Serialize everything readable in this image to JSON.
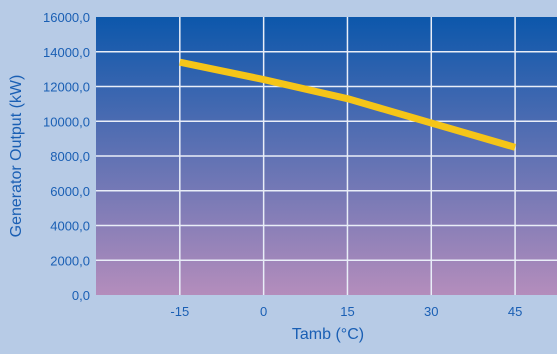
{
  "chart_data": {
    "type": "line",
    "title": "",
    "xlabel": "Tamb (°C)",
    "ylabel": "Generator Output (kW)",
    "xlim": [
      -30,
      52.5
    ],
    "ylim": [
      0,
      16000
    ],
    "x_ticks": [
      -15,
      0,
      15,
      30,
      45
    ],
    "x_tick_labels": [
      "-15",
      "0",
      "15",
      "30",
      "45"
    ],
    "y_ticks": [
      0,
      2000,
      4000,
      6000,
      8000,
      10000,
      12000,
      14000,
      16000
    ],
    "y_tick_labels": [
      "0,0",
      "2000,0",
      "4000,0",
      "6000,0",
      "8000,0",
      "10000,0",
      "12000,0",
      "14000,0",
      "16000,0"
    ],
    "grid": true,
    "legend": "none",
    "series": [
      {
        "x": [
          -15,
          0,
          15,
          30,
          45
        ],
        "y": [
          13400,
          12400,
          11300,
          9900,
          8500
        ],
        "color": "#f5c518"
      }
    ],
    "colors": {
      "page_background": "#b7cbe6",
      "plot_gradient_top": "#0c57ab",
      "plot_gradient_bottom": "#b48dbc",
      "grid": "#e9eef8",
      "text": "#1a5fb4",
      "line": "#f5c518"
    }
  }
}
